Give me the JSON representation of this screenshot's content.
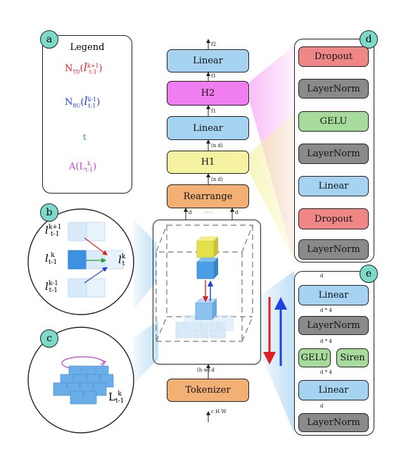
{
  "panels": {
    "a": {
      "badge": "a",
      "title": "Legend",
      "items": [
        {
          "main": "N",
          "sub": "TD",
          "paren_open": "(",
          "var": "l",
          "sup": "k+1",
          "sub2": "t-1",
          "paren_close": ")",
          "color": "#e02020"
        },
        {
          "main": "N",
          "sub": "BU",
          "paren_open": "(",
          "var": "l",
          "sup": "k-1",
          "sub2": "t-1",
          "paren_close": ")",
          "color": "#2040e0"
        },
        {
          "main": "t",
          "color": "#2ca02c"
        },
        {
          "main": "A(L",
          "sup": "k",
          "sub2": "t-1",
          "paren_close": ")",
          "color": "#c040c0"
        }
      ]
    },
    "b": {
      "badge": "b",
      "top": {
        "var": "l",
        "sup": "k+1",
        "sub": "t-1"
      },
      "mid": {
        "var": "l",
        "sup": "k",
        "sub": "t-1"
      },
      "bot": {
        "var": "l",
        "sup": "k-1",
        "sub": "t-1"
      },
      "right": {
        "var": "l",
        "sup": "k",
        "sub": "t"
      }
    },
    "c": {
      "badge": "c",
      "label": {
        "var": "L",
        "sup": "k",
        "sub": "t-1"
      }
    },
    "d": {
      "badge": "d",
      "blocks": [
        "Dropout",
        "LayerNorm",
        "GELU",
        "LayerNorm",
        "Linear",
        "Dropout",
        "LayerNorm"
      ]
    },
    "e": {
      "badge": "e",
      "linear_top": "Linear",
      "layernorm_mid": "LayerNorm",
      "gelu": "GELU",
      "siren": "Siren",
      "linear_bot": "Linear",
      "layernorm_bot": "LayerNorm",
      "dims": {
        "top": "d",
        "d4_a": "d * 4",
        "d4_b": "d * 4",
        "d4_c": "d * 4",
        "bottom": "d"
      }
    }
  },
  "main_stack": {
    "blocks": [
      "Linear",
      "H2",
      "Linear",
      "H1",
      "Rearrange"
    ],
    "tokenizer": "Tokenizer",
    "dims": {
      "f2": "f2",
      "f1a": "f1",
      "f1b": "f1",
      "nd1": "(n d)",
      "nd2": "(n d)",
      "d_left": "d",
      "dots": "· · ·",
      "d_right": "d",
      "hwd": "(h w) d",
      "chw": "c H W"
    }
  },
  "colors": {
    "blue": "#a7d3f2",
    "pink": "#f07ef0",
    "yellow": "#f5f2a2",
    "orange": "#f2b074",
    "red": "#ef8787",
    "green": "#a6db9b",
    "gray": "#8a8a8a",
    "badge": "#7dd9c9"
  }
}
